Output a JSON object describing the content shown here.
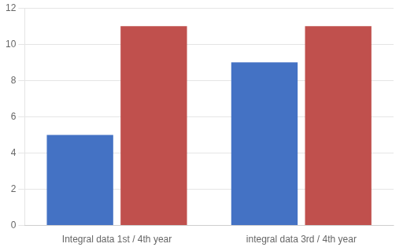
{
  "chart_data": {
    "type": "bar",
    "categories": [
      "Integral data 1st / 4th year",
      "integral data 3rd / 4th year"
    ],
    "series": [
      {
        "color": "#4472C4",
        "values": [
          5,
          9
        ]
      },
      {
        "color": "#C0504D",
        "values": [
          11,
          11
        ]
      }
    ],
    "ylim": [
      0,
      12
    ],
    "yticks": [
      0,
      2,
      4,
      6,
      8,
      10,
      12
    ],
    "grid": true
  }
}
